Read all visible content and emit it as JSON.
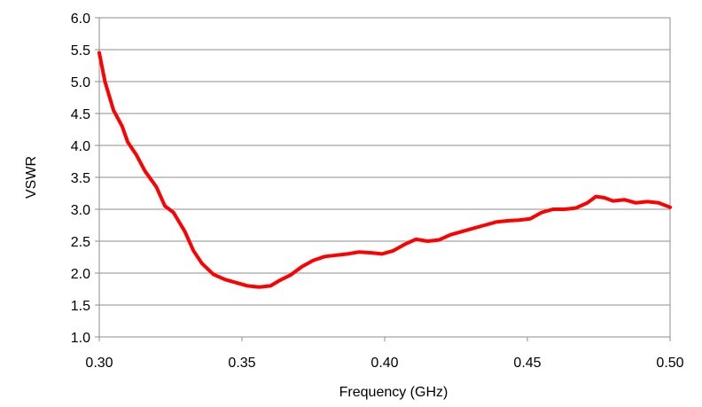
{
  "chart_data": {
    "type": "line",
    "title": "",
    "xlabel": "Frequency (GHz)",
    "ylabel": "VSWR",
    "xlim": [
      0.3,
      0.5
    ],
    "ylim": [
      1.0,
      6.0
    ],
    "xticks": [
      "0.30",
      "0.35",
      "0.40",
      "0.45",
      "0.50"
    ],
    "yticks": [
      "1.0",
      "1.5",
      "2.0",
      "2.5",
      "3.0",
      "3.5",
      "4.0",
      "4.5",
      "5.0",
      "5.5",
      "6.0"
    ],
    "grid": "horizontal",
    "legend": "none",
    "line_color": "#ff0000",
    "series": [
      {
        "x": [
          0.3,
          0.302,
          0.305,
          0.308,
          0.31,
          0.313,
          0.316,
          0.32,
          0.323,
          0.326,
          0.33,
          0.333,
          0.336,
          0.34,
          0.344,
          0.348,
          0.352,
          0.356,
          0.36,
          0.363,
          0.367,
          0.371,
          0.375,
          0.379,
          0.383,
          0.387,
          0.391,
          0.395,
          0.399,
          0.403,
          0.407,
          0.411,
          0.415,
          0.419,
          0.423,
          0.427,
          0.431,
          0.435,
          0.439,
          0.443,
          0.447,
          0.451,
          0.455,
          0.459,
          0.463,
          0.467,
          0.471,
          0.474,
          0.477,
          0.48,
          0.484,
          0.488,
          0.492,
          0.496,
          0.5
        ],
        "y": [
          5.45,
          5.0,
          4.55,
          4.3,
          4.05,
          3.85,
          3.6,
          3.35,
          3.05,
          2.95,
          2.65,
          2.35,
          2.15,
          1.98,
          1.9,
          1.85,
          1.8,
          1.78,
          1.8,
          1.88,
          1.97,
          2.1,
          2.2,
          2.26,
          2.28,
          2.3,
          2.33,
          2.32,
          2.3,
          2.35,
          2.45,
          2.53,
          2.5,
          2.52,
          2.6,
          2.65,
          2.7,
          2.75,
          2.8,
          2.82,
          2.83,
          2.85,
          2.95,
          3.0,
          3.0,
          3.02,
          3.1,
          3.2,
          3.18,
          3.13,
          3.15,
          3.1,
          3.12,
          3.1,
          3.03
        ]
      }
    ]
  }
}
